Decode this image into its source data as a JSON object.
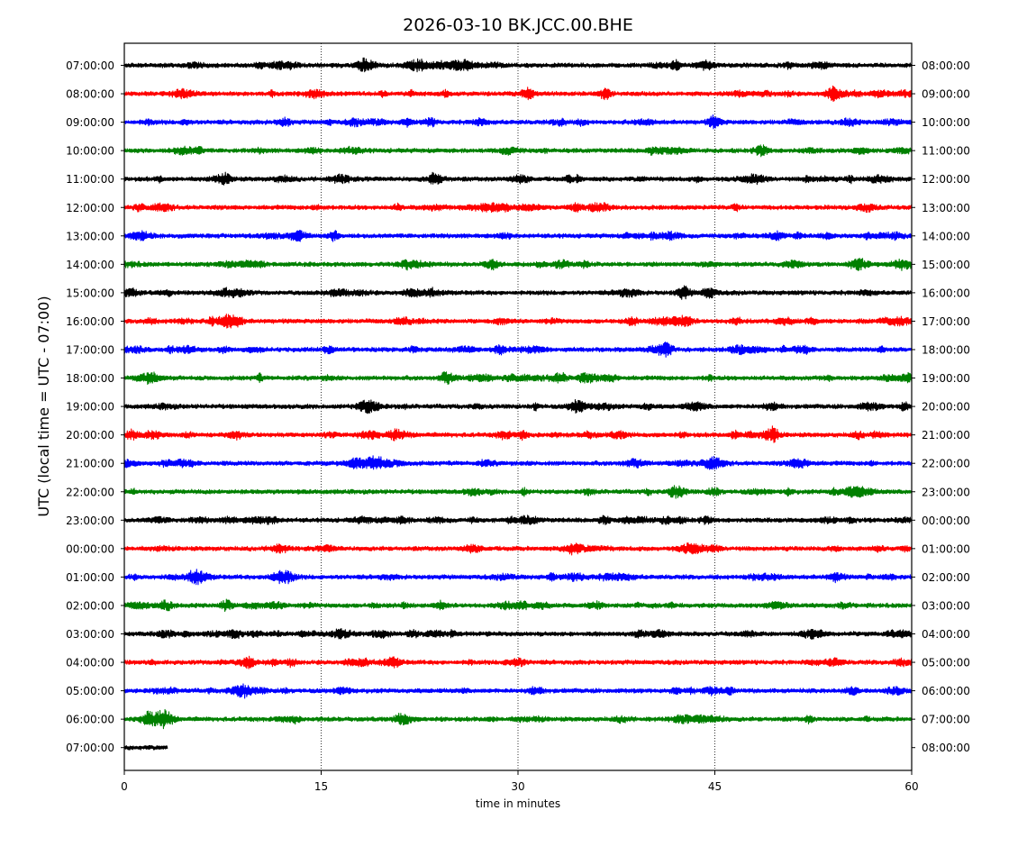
{
  "chart_data": {
    "type": "line",
    "title": "2026-03-10 BK.JCC.00.BHE",
    "xlabel": "time in minutes",
    "ylabel": "UTC (local time = UTC - 07:00)",
    "xlim": [
      0,
      60
    ],
    "x_ticks": [
      "0",
      "15",
      "30",
      "45",
      "60"
    ],
    "x_tick_values": [
      0,
      15,
      30,
      45,
      60
    ],
    "vertical_gridlines_at": [
      15,
      30,
      45
    ],
    "grid": "dotted vertical lines at 15, 30, 45",
    "left_tick_labels": [
      "07:00:00",
      "08:00:00",
      "09:00:00",
      "10:00:00",
      "11:00:00",
      "12:00:00",
      "13:00:00",
      "14:00:00",
      "15:00:00",
      "16:00:00",
      "17:00:00",
      "18:00:00",
      "19:00:00",
      "20:00:00",
      "21:00:00",
      "22:00:00",
      "23:00:00",
      "00:00:00",
      "01:00:00",
      "02:00:00",
      "03:00:00",
      "04:00:00",
      "05:00:00",
      "06:00:00",
      "07:00:00"
    ],
    "right_tick_labels": [
      "08:00:00",
      "09:00:00",
      "10:00:00",
      "11:00:00",
      "12:00:00",
      "13:00:00",
      "14:00:00",
      "15:00:00",
      "16:00:00",
      "17:00:00",
      "18:00:00",
      "19:00:00",
      "20:00:00",
      "21:00:00",
      "22:00:00",
      "23:00:00",
      "00:00:00",
      "01:00:00",
      "02:00:00",
      "03:00:00",
      "04:00:00",
      "05:00:00",
      "06:00:00",
      "07:00:00",
      "08:00:00"
    ],
    "trace_colors": [
      "#000000",
      "#ff0000",
      "#0000ff",
      "#008000"
    ],
    "trace_end_minutes": [
      60,
      60,
      60,
      60,
      60,
      60,
      60,
      60,
      60,
      60,
      60,
      60,
      60,
      60,
      60,
      60,
      60,
      60,
      60,
      60,
      60,
      60,
      60,
      60,
      3.3
    ]
  }
}
